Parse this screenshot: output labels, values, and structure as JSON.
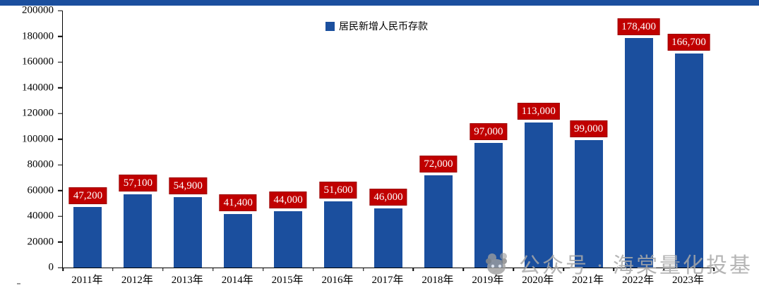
{
  "chart_data": {
    "type": "bar",
    "title": "",
    "legend": [
      "居民新增人民币存款"
    ],
    "legend_position": "top-center",
    "grid": "off",
    "categories": [
      "2011年",
      "2012年",
      "2013年",
      "2014年",
      "2015年",
      "2016年",
      "2017年",
      "2018年",
      "2019年",
      "2020年",
      "2021年",
      "2022年",
      "2023年"
    ],
    "values": [
      47200,
      57100,
      54900,
      41400,
      44000,
      51600,
      46000,
      72000,
      97000,
      113000,
      99000,
      178400,
      166700
    ],
    "value_labels": [
      "47,200",
      "57,100",
      "54,900",
      "41,400",
      "44,000",
      "51,600",
      "46,000",
      "72,000",
      "97,000",
      "113,000",
      "99,000",
      "178,400",
      "166,700"
    ],
    "xlabel": "",
    "ylabel": "",
    "ylim": [
      0,
      200000
    ],
    "y_ticks": [
      0,
      20000,
      40000,
      60000,
      80000,
      100000,
      120000,
      140000,
      160000,
      180000,
      200000
    ],
    "bar_color": "#1B4F9E",
    "value_label_bg": "#C00000",
    "value_label_text_color": "#FFFFFF"
  },
  "top_strip_color": "#1B4F9E",
  "watermark": {
    "text": "公众号 · 海棠量化投基",
    "logo": "panda-chat-icon"
  }
}
